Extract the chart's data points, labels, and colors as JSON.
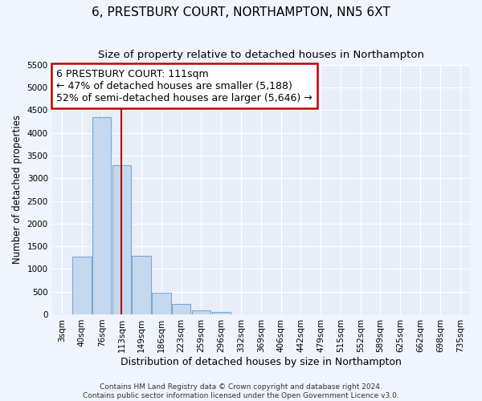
{
  "title": "6, PRESTBURY COURT, NORTHAMPTON, NN5 6XT",
  "subtitle": "Size of property relative to detached houses in Northampton",
  "xlabel": "Distribution of detached houses by size in Northampton",
  "ylabel": "Number of detached properties",
  "categories": [
    "3sqm",
    "40sqm",
    "76sqm",
    "113sqm",
    "149sqm",
    "186sqm",
    "223sqm",
    "259sqm",
    "296sqm",
    "332sqm",
    "369sqm",
    "406sqm",
    "442sqm",
    "479sqm",
    "515sqm",
    "552sqm",
    "589sqm",
    "625sqm",
    "662sqm",
    "698sqm",
    "735sqm"
  ],
  "values": [
    0,
    1270,
    4340,
    3280,
    1290,
    480,
    230,
    90,
    60,
    0,
    0,
    0,
    0,
    0,
    0,
    0,
    0,
    0,
    0,
    0,
    0
  ],
  "bar_color": "#c5d8ee",
  "bar_edge_color": "#7aa8d4",
  "vline_x_index": 3,
  "vline_color": "#c00000",
  "annotation_line1": "6 PRESTBURY COURT: 111sqm",
  "annotation_line2": "← 47% of detached houses are smaller (5,188)",
  "annotation_line3": "52% of semi-detached houses are larger (5,646) →",
  "annotation_box_color": "#c00000",
  "ylim": [
    0,
    5500
  ],
  "yticks": [
    0,
    500,
    1000,
    1500,
    2000,
    2500,
    3000,
    3500,
    4000,
    4500,
    5000,
    5500
  ],
  "background_color": "#f0f4fd",
  "plot_bg_color": "#e8eef8",
  "grid_color": "#ffffff",
  "footer_text": "Contains HM Land Registry data © Crown copyright and database right 2024.\nContains public sector information licensed under the Open Government Licence v3.0.",
  "title_fontsize": 11,
  "subtitle_fontsize": 9.5,
  "xlabel_fontsize": 9,
  "ylabel_fontsize": 8.5,
  "tick_fontsize": 7.5,
  "annotation_fontsize": 9,
  "footer_fontsize": 6.5
}
